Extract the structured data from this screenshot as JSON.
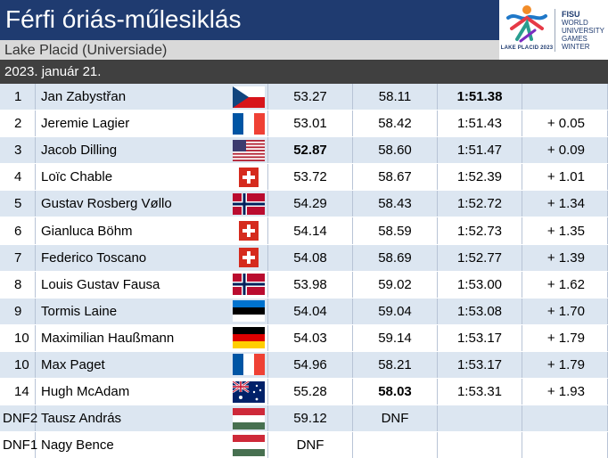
{
  "header": {
    "title": "Férfi óriás-műlesiklás",
    "subtitle": "Lake Placid (Universiade)",
    "date": "2023. január 21."
  },
  "logo": {
    "left_caption": "LAKE PLACID 2023",
    "brand": "FISU",
    "lines": [
      "WORLD",
      "UNIVERSITY",
      "GAMES",
      "WINTER"
    ]
  },
  "colors": {
    "title_bg": "#1f3b70",
    "date_bg": "#404040",
    "row_alt": "#dce6f1"
  },
  "results": [
    {
      "rank": "1",
      "name": "Jan Zabystřan",
      "flag": "CZE",
      "run1": "53.27",
      "run2": "58.11",
      "total": "1:51.38",
      "diff": "",
      "bold_run1": false,
      "bold_run2": false,
      "bold_total": true
    },
    {
      "rank": "2",
      "name": "Jeremie Lagier",
      "flag": "FRA",
      "run1": "53.01",
      "run2": "58.42",
      "total": "1:51.43",
      "diff": "+ 0.05",
      "bold_run1": false,
      "bold_run2": false,
      "bold_total": false
    },
    {
      "rank": "3",
      "name": "Jacob Dilling",
      "flag": "USA",
      "run1": "52.87",
      "run2": "58.60",
      "total": "1:51.47",
      "diff": "+ 0.09",
      "bold_run1": true,
      "bold_run2": false,
      "bold_total": false
    },
    {
      "rank": "4",
      "name": "Loïc Chable",
      "flag": "SUI",
      "run1": "53.72",
      "run2": "58.67",
      "total": "1:52.39",
      "diff": "+ 1.01",
      "bold_run1": false,
      "bold_run2": false,
      "bold_total": false
    },
    {
      "rank": "5",
      "name": "Gustav Rosberg Vøllo",
      "flag": "NOR",
      "run1": "54.29",
      "run2": "58.43",
      "total": "1:52.72",
      "diff": "+ 1.34",
      "bold_run1": false,
      "bold_run2": false,
      "bold_total": false
    },
    {
      "rank": "6",
      "name": "Gianluca Böhm",
      "flag": "SUI",
      "run1": "54.14",
      "run2": "58.59",
      "total": "1:52.73",
      "diff": "+ 1.35",
      "bold_run1": false,
      "bold_run2": false,
      "bold_total": false
    },
    {
      "rank": "7",
      "name": "Federico Toscano",
      "flag": "SUI",
      "run1": "54.08",
      "run2": "58.69",
      "total": "1:52.77",
      "diff": "+ 1.39",
      "bold_run1": false,
      "bold_run2": false,
      "bold_total": false
    },
    {
      "rank": "8",
      "name": "Louis Gustav Fausa",
      "flag": "NOR",
      "run1": "53.98",
      "run2": "59.02",
      "total": "1:53.00",
      "diff": "+ 1.62",
      "bold_run1": false,
      "bold_run2": false,
      "bold_total": false
    },
    {
      "rank": "9",
      "name": "Tormis Laine",
      "flag": "EST",
      "run1": "54.04",
      "run2": "59.04",
      "total": "1:53.08",
      "diff": "+ 1.70",
      "bold_run1": false,
      "bold_run2": false,
      "bold_total": false
    },
    {
      "rank": "10",
      "name": "Maximilian Haußmann",
      "flag": "GER",
      "run1": "54.03",
      "run2": "59.14",
      "total": "1:53.17",
      "diff": "+ 1.79",
      "bold_run1": false,
      "bold_run2": false,
      "bold_total": false
    },
    {
      "rank": "10",
      "name": "Max Paget",
      "flag": "FRA",
      "run1": "54.96",
      "run2": "58.21",
      "total": "1:53.17",
      "diff": "+ 1.79",
      "bold_run1": false,
      "bold_run2": false,
      "bold_total": false
    },
    {
      "rank": "14",
      "name": "Hugh McAdam",
      "flag": "AUS",
      "run1": "55.28",
      "run2": "58.03",
      "total": "1:53.31",
      "diff": "+ 1.93",
      "bold_run1": false,
      "bold_run2": true,
      "bold_total": false
    },
    {
      "rank": "DNF2",
      "name": "Tausz András",
      "flag": "HUN",
      "run1": "59.12",
      "run2": "DNF",
      "total": "",
      "diff": "",
      "bold_run1": false,
      "bold_run2": false,
      "bold_total": false
    },
    {
      "rank": "DNF1",
      "name": "Nagy Bence",
      "flag": "HUN",
      "run1": "DNF",
      "run2": "",
      "total": "",
      "diff": "",
      "bold_run1": false,
      "bold_run2": false,
      "bold_total": false
    }
  ]
}
